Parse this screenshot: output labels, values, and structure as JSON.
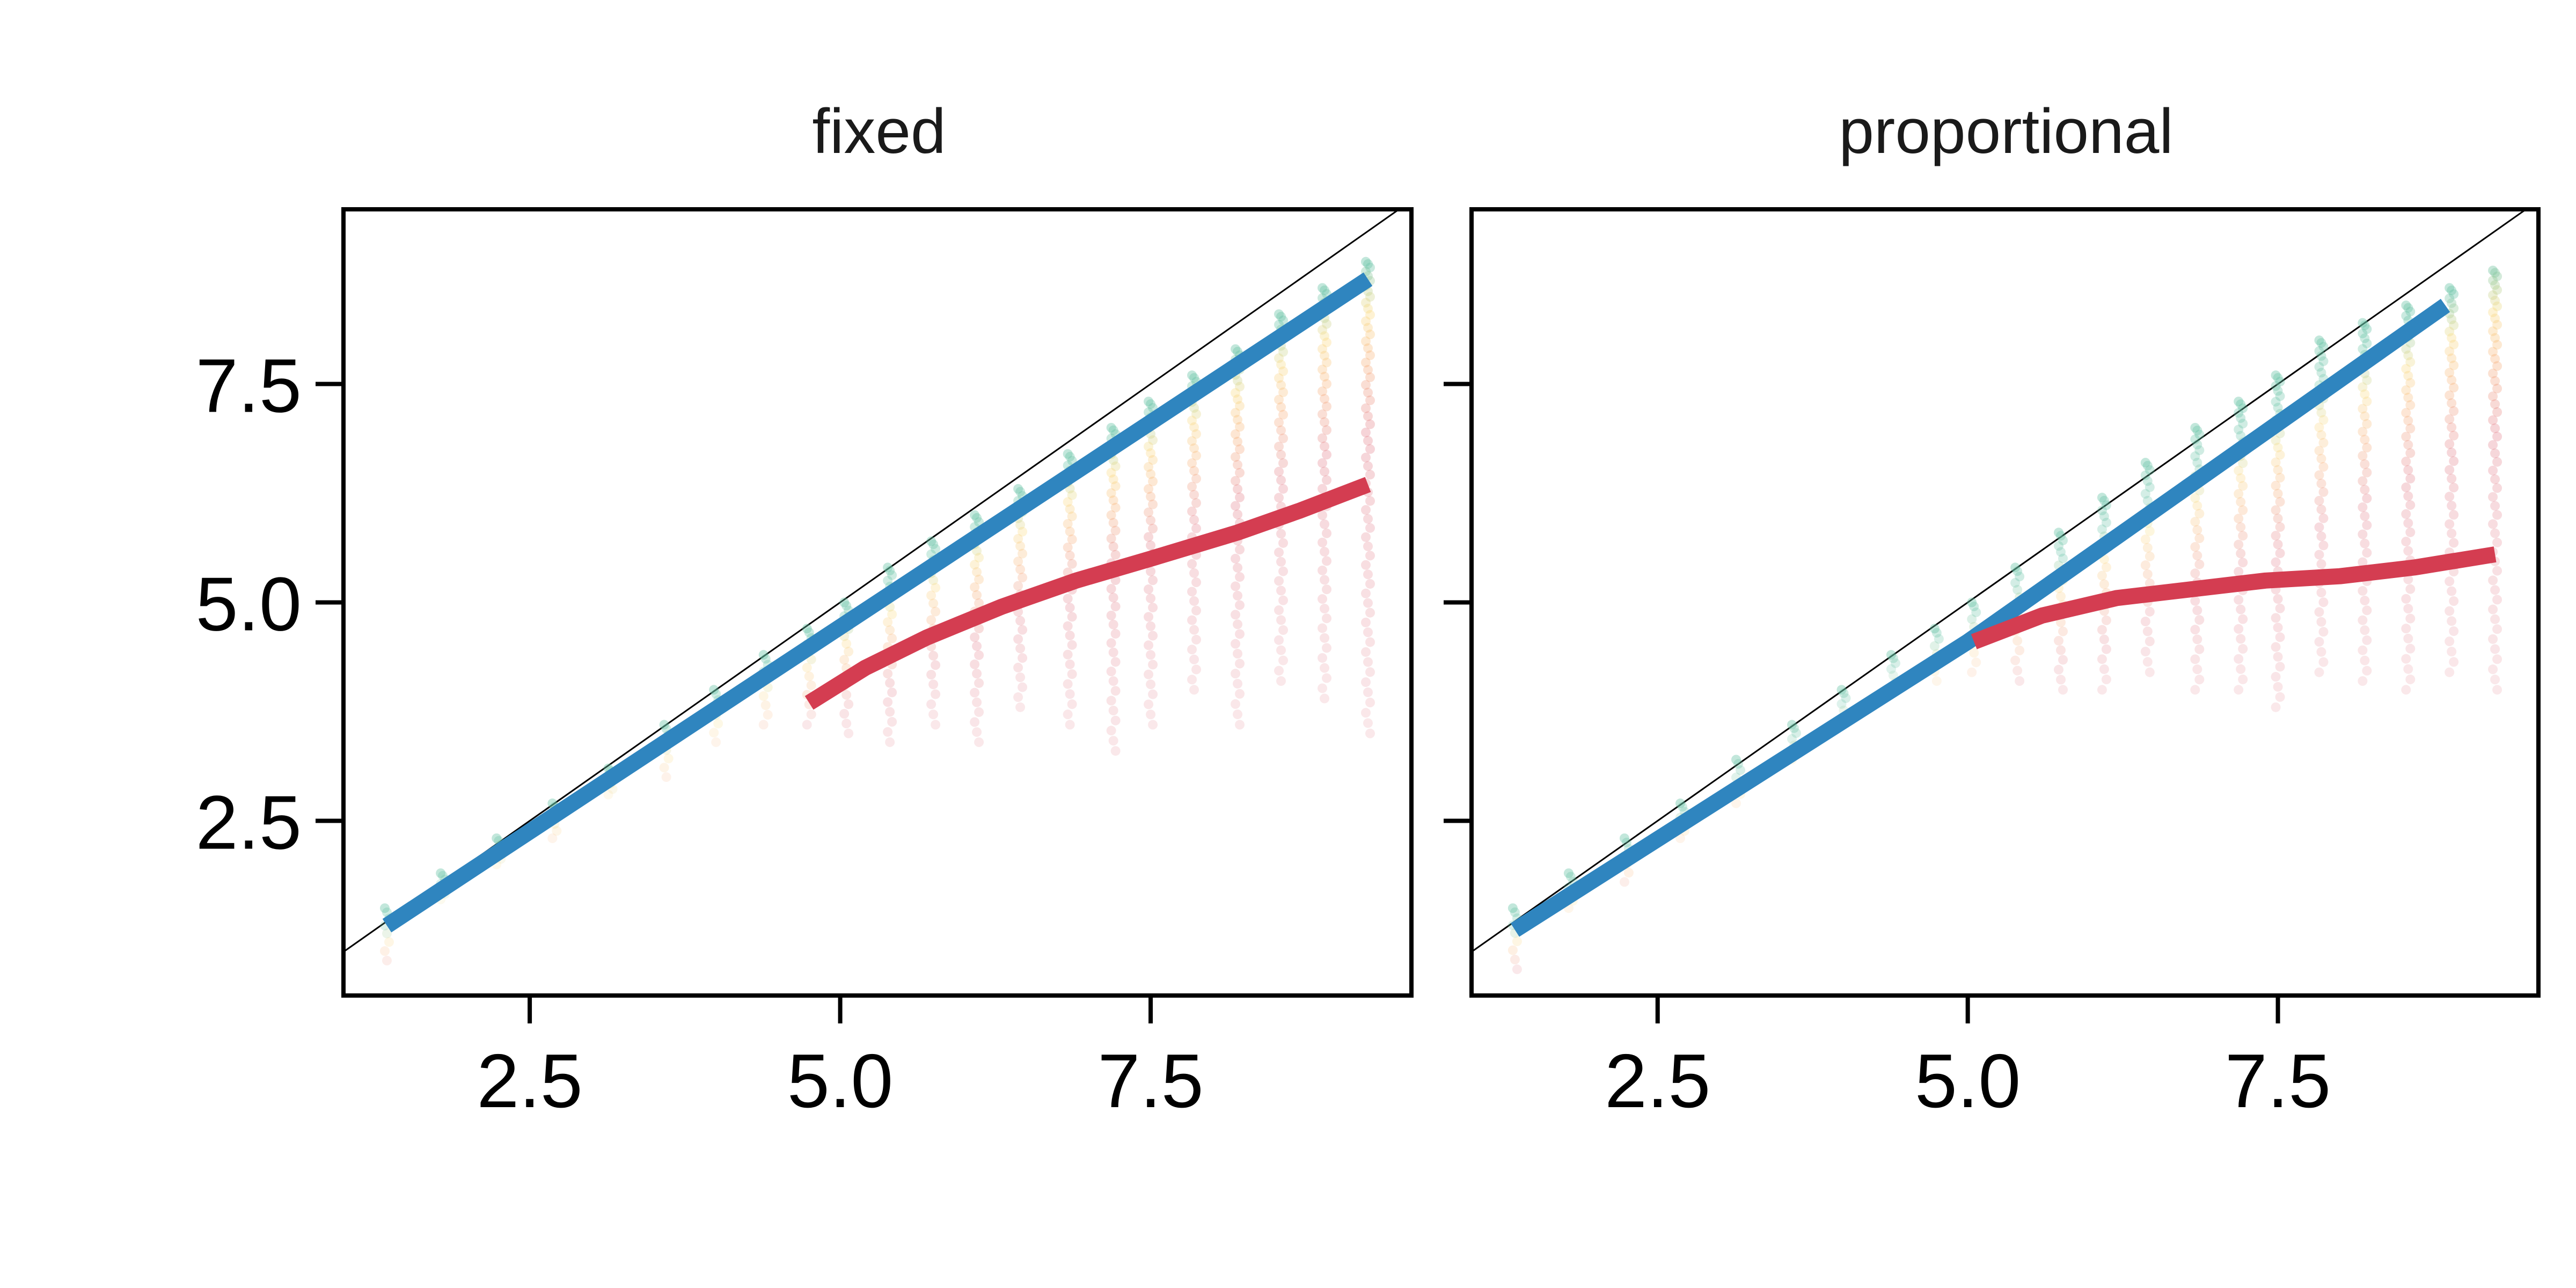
{
  "chart_data": [
    {
      "type": "scatter",
      "title": "fixed",
      "xlabel": "",
      "ylabel": "",
      "xlim": [
        1.0,
        9.6
      ],
      "ylim": [
        0.5,
        9.5
      ],
      "xticks": [
        2.5,
        5.0,
        7.5
      ],
      "xtick_labels": [
        "2.5",
        "5.0",
        "7.5"
      ],
      "yticks": [
        2.5,
        5.0,
        7.5
      ],
      "ytick_labels": [
        "2.5",
        "5.0",
        "7.5"
      ],
      "grid": false,
      "reference_line": "y = x",
      "scatter_x": [
        1.35,
        1.8,
        2.25,
        2.7,
        3.15,
        3.6,
        4.0,
        4.4,
        4.75,
        5.05,
        5.4,
        5.75,
        6.1,
        6.45,
        6.85,
        7.2,
        7.5,
        7.85,
        8.2,
        8.55,
        8.9,
        9.25
      ],
      "scatter_y_range": [
        [
          0.9,
          1.5
        ],
        [
          1.6,
          1.9
        ],
        [
          2.0,
          2.3
        ],
        [
          2.3,
          2.7
        ],
        [
          2.8,
          3.1
        ],
        [
          3.0,
          3.6
        ],
        [
          3.4,
          4.0
        ],
        [
          3.6,
          4.4
        ],
        [
          3.6,
          4.7
        ],
        [
          3.5,
          5.0
        ],
        [
          3.4,
          5.4
        ],
        [
          3.6,
          5.7
        ],
        [
          3.4,
          6.0
        ],
        [
          3.8,
          6.3
        ],
        [
          3.6,
          6.7
        ],
        [
          3.3,
          7.0
        ],
        [
          3.6,
          7.3
        ],
        [
          4.0,
          7.6
        ],
        [
          3.6,
          7.9
        ],
        [
          4.1,
          8.3
        ],
        [
          3.9,
          8.6
        ],
        [
          3.5,
          8.9
        ]
      ],
      "series": [
        {
          "name": "",
          "color": "#2f85bf",
          "x": [
            1.35,
            9.25
          ],
          "y": [
            1.3,
            8.7
          ]
        },
        {
          "name": "",
          "color": "#d43d51",
          "x": [
            4.75,
            5.2,
            5.7,
            6.3,
            6.9,
            7.5,
            8.2,
            8.7,
            9.25
          ],
          "y": [
            3.85,
            4.25,
            4.6,
            4.95,
            5.25,
            5.5,
            5.8,
            6.05,
            6.35
          ]
        }
      ]
    },
    {
      "type": "scatter",
      "title": "proportional",
      "xlabel": "",
      "ylabel": "",
      "xlim": [
        1.0,
        9.6
      ],
      "ylim": [
        0.5,
        9.5
      ],
      "xticks": [
        2.5,
        5.0,
        7.5
      ],
      "xtick_labels": [
        "2.5",
        "5.0",
        "7.5"
      ],
      "yticks": [
        2.5,
        5.0,
        7.5
      ],
      "ytick_labels": [],
      "grid": false,
      "reference_line": "y = x",
      "scatter_x": [
        1.35,
        1.8,
        2.25,
        2.7,
        3.15,
        3.6,
        4.0,
        4.4,
        4.75,
        5.05,
        5.4,
        5.75,
        6.1,
        6.45,
        6.85,
        7.2,
        7.5,
        7.85,
        8.2,
        8.55,
        8.9,
        9.25
      ],
      "scatter_y_range": [
        [
          0.8,
          1.5
        ],
        [
          1.5,
          1.9
        ],
        [
          1.8,
          2.3
        ],
        [
          2.3,
          2.7
        ],
        [
          2.7,
          3.2
        ],
        [
          3.2,
          3.6
        ],
        [
          3.6,
          4.0
        ],
        [
          4.0,
          4.4
        ],
        [
          4.1,
          4.7
        ],
        [
          4.2,
          5.0
        ],
        [
          4.1,
          5.4
        ],
        [
          4.0,
          5.8
        ],
        [
          4.0,
          6.2
        ],
        [
          4.2,
          6.6
        ],
        [
          4.0,
          7.0
        ],
        [
          4.0,
          7.3
        ],
        [
          3.8,
          7.6
        ],
        [
          4.2,
          8.0
        ],
        [
          4.1,
          8.2
        ],
        [
          4.0,
          8.4
        ],
        [
          4.2,
          8.6
        ],
        [
          4.0,
          8.8
        ]
      ],
      "series": [
        {
          "name": "",
          "color": "#2f85bf",
          "x": [
            1.35,
            5.0,
            8.85
          ],
          "y": [
            1.25,
            4.55,
            8.4
          ]
        },
        {
          "name": "",
          "color": "#d43d51",
          "x": [
            5.05,
            5.6,
            6.2,
            6.8,
            7.4,
            8.0,
            8.6,
            9.25
          ],
          "y": [
            4.55,
            4.85,
            5.05,
            5.15,
            5.25,
            5.3,
            5.4,
            5.55
          ]
        }
      ]
    }
  ]
}
